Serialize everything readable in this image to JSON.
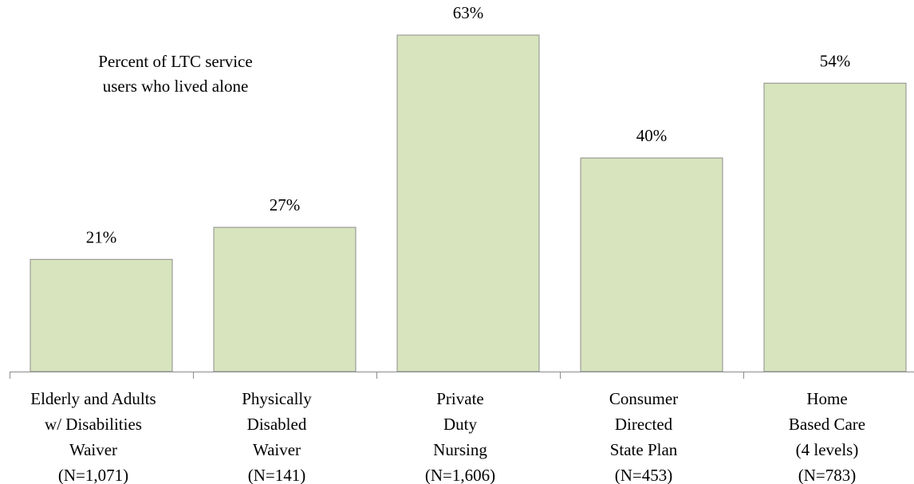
{
  "chart_data": {
    "type": "bar",
    "title": "Percent of LTC service\nusers who lived alone",
    "categories": [
      "Elderly and Adults\nw/ Disabilities\nWaiver\n(N=1,071)",
      "Physically\nDisabled\nWaiver\n(N=141)",
      "Private\nDuty\nNursing\n(N=1,606)",
      "Consumer\nDirected\nState Plan\n(N=453)",
      "Home\nBased Care\n(4 levels)\n(N=783)"
    ],
    "values": [
      21,
      27,
      63,
      40,
      54
    ],
    "data_labels": [
      "21%",
      "27%",
      "63%",
      "40%",
      "54%"
    ],
    "ylim": [
      0,
      70
    ],
    "xlabel": "",
    "ylabel": "",
    "grid": false,
    "legend": "none",
    "colors": {
      "bar_fill": "#d7e4bd",
      "bar_stroke": "#8c8c8c",
      "axis": "#8c8c8c"
    }
  }
}
